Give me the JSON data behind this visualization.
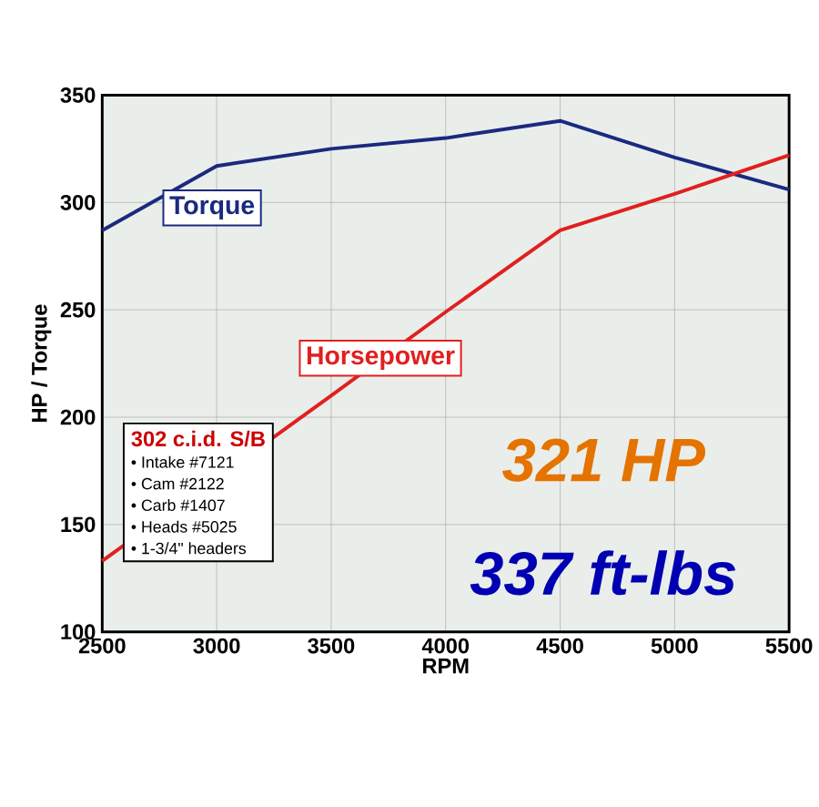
{
  "chart_data": {
    "type": "line",
    "xlabel": "RPM",
    "ylabel": "HP / Torque",
    "x": [
      2500,
      3000,
      3500,
      4000,
      4500,
      5000,
      5500
    ],
    "series": [
      {
        "name": "Torque",
        "color": "#1a2a80",
        "values": [
          287,
          317,
          325,
          330,
          338,
          321,
          306
        ]
      },
      {
        "name": "Horsepower",
        "color": "#e02020",
        "values": [
          133,
          null,
          210,
          249,
          287,
          304,
          322
        ]
      }
    ],
    "xlim": [
      2500,
      5500
    ],
    "xticks": [
      2500,
      3000,
      3500,
      4000,
      4500,
      5000,
      5500
    ],
    "ylim": [
      100,
      350
    ],
    "yticks": [
      100,
      150,
      200,
      250,
      300,
      350
    ],
    "grid": true,
    "annotations": [
      "302 c.i.d. S/B",
      "• Intake #7121",
      "• Cam #2122",
      "• Carb #1407",
      "• Heads #5025",
      "• 1-3/4\" headers",
      "321 HP",
      "337 ft-lbs"
    ]
  }
}
